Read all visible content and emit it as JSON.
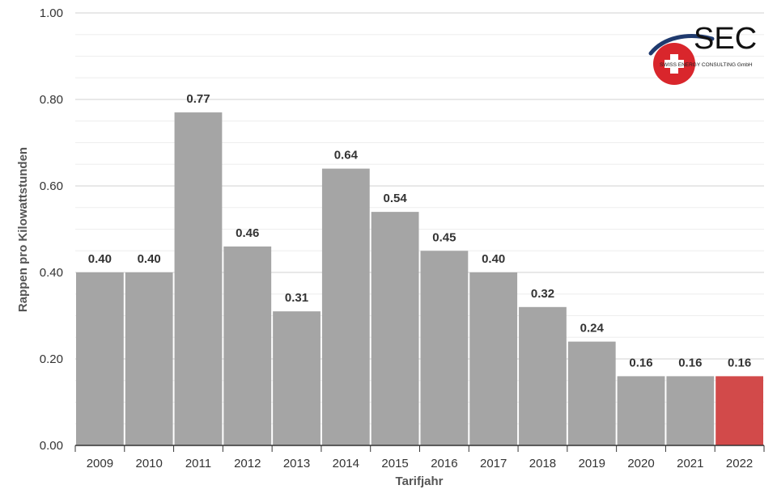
{
  "chart_data": {
    "type": "bar",
    "categories": [
      "2009",
      "2010",
      "2011",
      "2012",
      "2013",
      "2014",
      "2015",
      "2016",
      "2017",
      "2018",
      "2019",
      "2020",
      "2021",
      "2022"
    ],
    "values": [
      0.4,
      0.4,
      0.77,
      0.46,
      0.31,
      0.64,
      0.54,
      0.45,
      0.4,
      0.32,
      0.24,
      0.16,
      0.16,
      0.16
    ],
    "data_labels": [
      "0.40",
      "0.40",
      "0.77",
      "0.46",
      "0.31",
      "0.64",
      "0.54",
      "0.45",
      "0.40",
      "0.32",
      "0.24",
      "0.16",
      "0.16",
      "0.16"
    ],
    "y_ticks": [
      "0.00",
      "0.20",
      "0.40",
      "0.60",
      "0.80",
      "1.00"
    ],
    "ylim": [
      0,
      1
    ],
    "xlabel": "Tarifjahr",
    "ylabel": "Rappen pro Kilowattstunden",
    "grid": true,
    "colors": {
      "bar": "#a5a5a5",
      "highlight": "#d24a4a",
      "highlight_index": 13,
      "grid": "#d0d0d0",
      "minor_grid": "#eeeeee"
    }
  },
  "logo": {
    "name": "SEC",
    "subtitle": "SWISS ENERGY CONSULTING GmbH",
    "icon": "swiss-cross-icon"
  }
}
